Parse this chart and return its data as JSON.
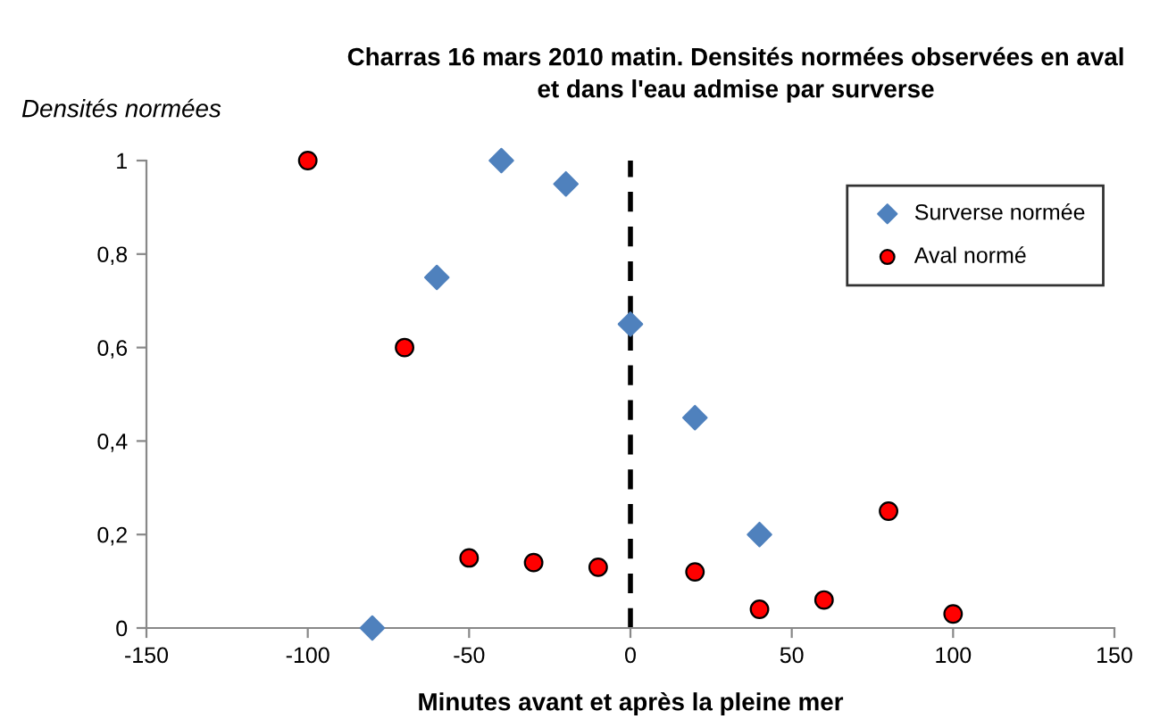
{
  "chart_data": {
    "type": "scatter",
    "title": "Charras 16 mars 2010 matin. Densités normées observées en aval\net dans l'eau admise par surverse",
    "xlabel": "Minutes avant et après la pleine mer",
    "ylabel": "Densités normées",
    "series": [
      {
        "name": "Surverse normée",
        "color": "#4f81bd",
        "marker": "diamond",
        "x": [
          -80,
          -60,
          -40,
          -20,
          0,
          20,
          40
        ],
        "values": [
          0,
          0.75,
          1,
          0.95,
          0.65,
          0.45,
          0.2
        ]
      },
      {
        "name": "Aval normé",
        "color": "#ff0000",
        "marker": "circle",
        "x": [
          -100,
          -70,
          -50,
          -30,
          -10,
          20,
          40,
          60,
          80,
          100
        ],
        "values": [
          1,
          0.6,
          0.15,
          0.14,
          0.13,
          0.12,
          0.04,
          0.06,
          0.25,
          0.03
        ]
      }
    ],
    "xlim": [
      -150,
      150
    ],
    "xticks": [
      -150,
      -100,
      -50,
      0,
      50,
      100,
      150
    ],
    "ylim": [
      0,
      1
    ],
    "yticks": [
      0,
      {
        "value": 0.2,
        "label": "0,2"
      },
      {
        "value": 0.4,
        "label": "0,4"
      },
      {
        "value": 0.6,
        "label": "0,6"
      },
      {
        "value": 0.8,
        "label": "0,8"
      },
      1
    ],
    "ref_lines": [
      {
        "axis": "x",
        "value": 0,
        "color": "#000000",
        "line_style": "dashed"
      }
    ],
    "grid": false,
    "legend": "top right"
  }
}
